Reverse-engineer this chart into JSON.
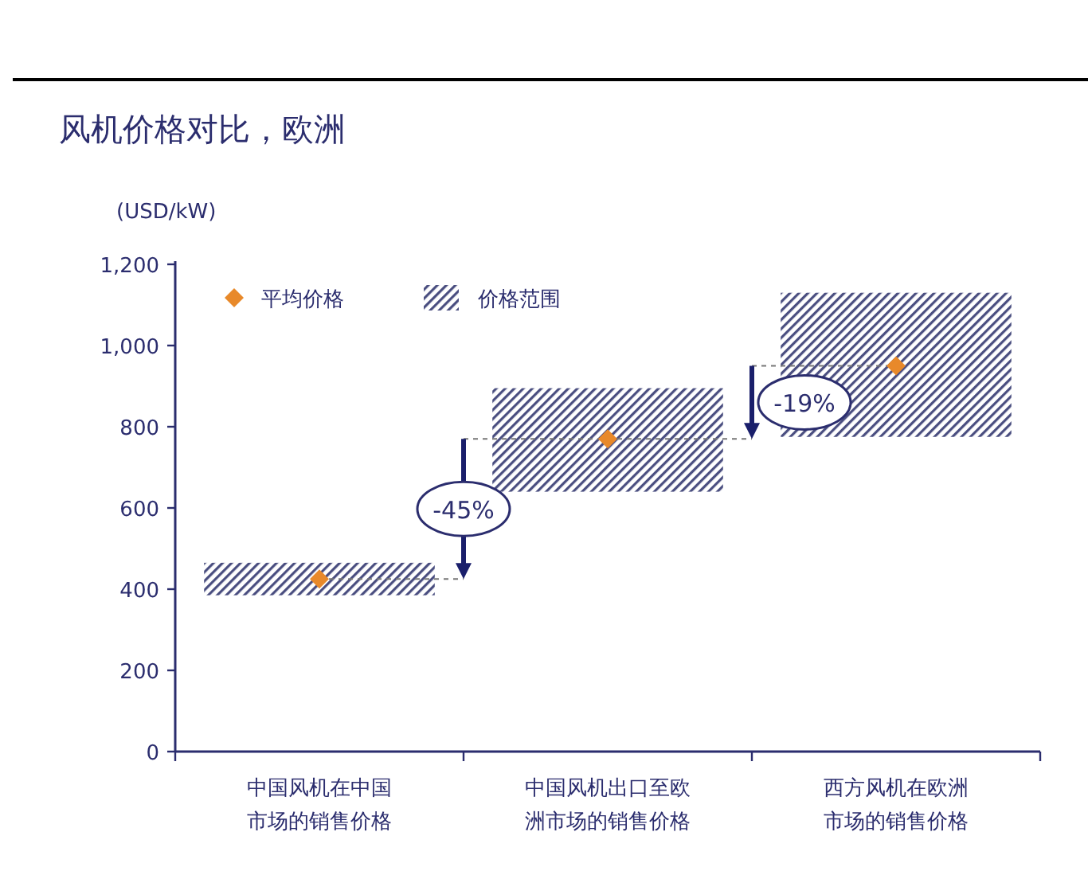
{
  "chart_data": {
    "type": "bar",
    "title": "风机价格对比，欧洲",
    "ylabel": "(USD/kW)",
    "categories": [
      "中国风机在中国市场的销售价格",
      "中国风机出口至欧洲市场的销售价格",
      "西方风机在欧洲市场的销售价格"
    ],
    "series": [
      {
        "name": "价格范围",
        "type": "bar",
        "color": "#4a4e80",
        "base": [
          385,
          640,
          775
        ],
        "values": [
          80,
          255,
          355
        ]
      },
      {
        "name": "平均价格",
        "type": "scatter",
        "color": "#e8892a",
        "marker": "diamond",
        "x": [
          "中国风机在中国市场的销售价格",
          "中国风机出口至欧洲市场的销售价格",
          "西方风机在欧洲市场的销售价格"
        ],
        "values": [
          425,
          770,
          950
        ]
      }
    ],
    "annotations": [
      "-45%",
      {
        "text": "-19%",
        "y": 770
      }
    ],
    "ylim": [
      0,
      1200
    ],
    "yticks": [
      0,
      200,
      400,
      600,
      800,
      {
        "value": 1000,
        "label": "1,000"
      },
      {
        "value": 1200,
        "label": "1,200"
      }
    ],
    "legend": "top left",
    "grid": false
  }
}
